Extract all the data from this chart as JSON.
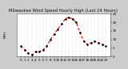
{
  "title": "Milwaukee Wind Speed Hourly High (Last 24 Hours)",
  "background_color": "#cccccc",
  "plot_bg_color": "#ffffff",
  "left_margin_color": "#999999",
  "line_color": "#dd0000",
  "marker_color": "#000000",
  "grid_color": "#aaaaaa",
  "hours": [
    0,
    1,
    2,
    3,
    4,
    5,
    6,
    7,
    8,
    9,
    10,
    11,
    12,
    13,
    14,
    15,
    16,
    17,
    18,
    19,
    20,
    21,
    22,
    23
  ],
  "values": [
    6,
    4,
    2,
    1,
    3,
    3,
    4,
    6,
    10,
    13,
    16,
    19,
    22,
    23,
    22,
    20,
    14,
    9,
    7,
    8,
    9,
    8,
    7,
    6
  ],
  "ylim": [
    0,
    25
  ],
  "yticks": [
    0,
    5,
    10,
    15,
    20,
    25
  ],
  "ytick_labels": [
    "0",
    "5",
    "10",
    "15",
    "20",
    "25"
  ],
  "title_fontsize": 3.8,
  "axis_fontsize": 3.0,
  "ylabel": "MPH"
}
